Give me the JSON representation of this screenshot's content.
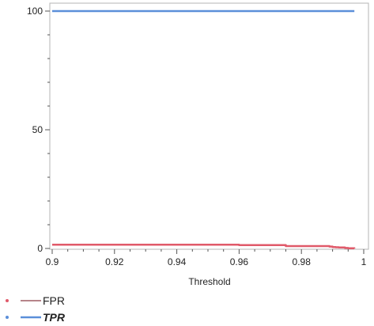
{
  "chart_data": {
    "type": "line",
    "title": "",
    "xlabel": "Threshold",
    "ylabel": "",
    "xlim": [
      0.9,
      1.0
    ],
    "ylim": [
      0,
      100
    ],
    "x_ticks": [
      "0.9",
      "0.92",
      "0.94",
      "0.96",
      "0.98",
      "1"
    ],
    "y_ticks": [
      "0",
      "50",
      "100"
    ],
    "grid": false,
    "legend_position": "bottom-left",
    "series": [
      {
        "name": "FPR",
        "color": "#e05a6a",
        "x": [
          0.9,
          0.92,
          0.94,
          0.955,
          0.96,
          0.974,
          0.975,
          0.988,
          0.989,
          0.99,
          0.991,
          0.992,
          0.994,
          0.995,
          0.997
        ],
        "y": [
          1.6,
          1.6,
          1.6,
          1.6,
          1.4,
          1.4,
          1.0,
          1.0,
          0.8,
          0.6,
          0.5,
          0.4,
          0.2,
          0.1,
          0.0
        ]
      },
      {
        "name": "TPR",
        "color": "#5b8fd9",
        "x": [
          0.9,
          0.92,
          0.94,
          0.96,
          0.98,
          0.997
        ],
        "y": [
          100,
          100,
          100,
          100,
          100,
          100
        ]
      }
    ]
  }
}
